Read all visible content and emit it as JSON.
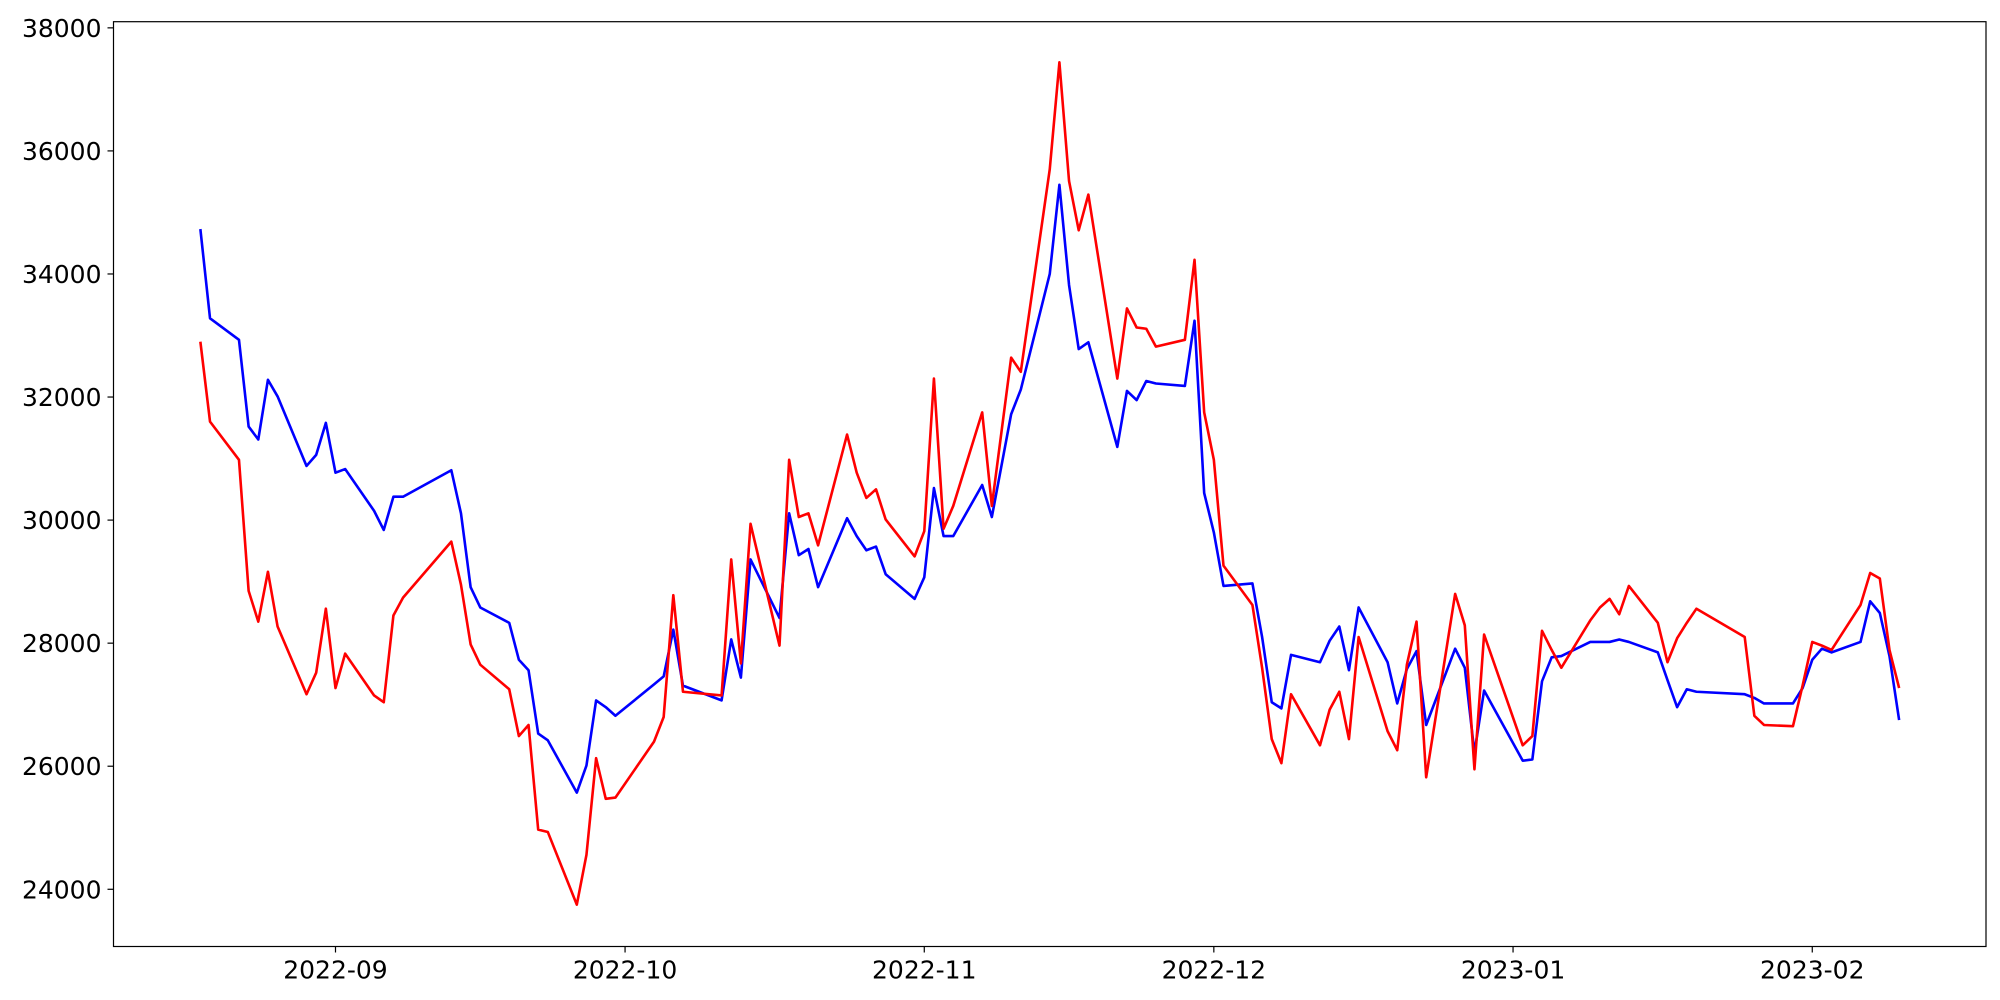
{
  "chart_data": {
    "type": "line",
    "x": [
      "2022-08-18",
      "2022-08-19",
      "2022-08-22",
      "2022-08-23",
      "2022-08-24",
      "2022-08-25",
      "2022-08-26",
      "2022-08-29",
      "2022-08-30",
      "2022-08-31",
      "2022-09-01",
      "2022-09-02",
      "2022-09-05",
      "2022-09-06",
      "2022-09-07",
      "2022-09-08",
      "2022-09-13",
      "2022-09-14",
      "2022-09-15",
      "2022-09-16",
      "2022-09-19",
      "2022-09-20",
      "2022-09-21",
      "2022-09-22",
      "2022-09-23",
      "2022-09-26",
      "2022-09-27",
      "2022-09-28",
      "2022-09-29",
      "2022-09-30",
      "2022-10-04",
      "2022-10-05",
      "2022-10-06",
      "2022-10-07",
      "2022-10-11",
      "2022-10-12",
      "2022-10-13",
      "2022-10-14",
      "2022-10-17",
      "2022-10-18",
      "2022-10-19",
      "2022-10-20",
      "2022-10-21",
      "2022-10-24",
      "2022-10-25",
      "2022-10-26",
      "2022-10-27",
      "2022-10-28",
      "2022-10-31",
      "2022-11-01",
      "2022-11-02",
      "2022-11-03",
      "2022-11-04",
      "2022-11-07",
      "2022-11-08",
      "2022-11-10",
      "2022-11-11",
      "2022-11-14",
      "2022-11-15",
      "2022-11-16",
      "2022-11-17",
      "2022-11-18",
      "2022-11-21",
      "2022-11-22",
      "2022-11-23",
      "2022-11-24",
      "2022-11-25",
      "2022-11-28",
      "2022-11-29",
      "2022-11-30",
      "2022-12-01",
      "2022-12-02",
      "2022-12-05",
      "2022-12-06",
      "2022-12-07",
      "2022-12-08",
      "2022-12-09",
      "2022-12-12",
      "2022-12-13",
      "2022-12-14",
      "2022-12-15",
      "2022-12-16",
      "2022-12-19",
      "2022-12-20",
      "2022-12-21",
      "2022-12-22",
      "2022-12-23",
      "2022-12-26",
      "2022-12-27",
      "2022-12-28",
      "2022-12-29",
      "2023-01-02",
      "2023-01-03",
      "2023-01-04",
      "2023-01-05",
      "2023-01-06",
      "2023-01-09",
      "2023-01-10",
      "2023-01-11",
      "2023-01-12",
      "2023-01-13",
      "2023-01-16",
      "2023-01-17",
      "2023-01-18",
      "2023-01-19",
      "2023-01-20",
      "2023-01-25",
      "2023-01-26",
      "2023-01-27",
      "2023-01-30",
      "2023-01-31",
      "2023-02-01",
      "2023-02-02",
      "2023-02-03",
      "2023-02-06",
      "2023-02-07",
      "2023-02-08",
      "2023-02-09",
      "2023-02-10"
    ],
    "series": [
      {
        "color": "#0000ff",
        "values": [
          34730,
          33280,
          32930,
          31520,
          31310,
          32280,
          32010,
          30880,
          31060,
          31580,
          30770,
          30830,
          30150,
          29840,
          30380,
          30380,
          30810,
          30110,
          28910,
          28580,
          28330,
          27730,
          27560,
          26530,
          26420,
          25570,
          26010,
          27070,
          26960,
          26820,
          27330,
          27460,
          28220,
          27310,
          27070,
          28060,
          27440,
          29360,
          28410,
          30110,
          29430,
          29530,
          28910,
          30030,
          29740,
          29510,
          29570,
          29120,
          28720,
          29070,
          30520,
          29740,
          29740,
          30570,
          30050,
          31720,
          32120,
          34000,
          35450,
          33820,
          32780,
          32890,
          31190,
          32100,
          31950,
          32260,
          32220,
          32180,
          33240,
          30440,
          29800,
          28930,
          28970,
          28100,
          27040,
          26940,
          27810,
          27690,
          28040,
          28270,
          27560,
          28580,
          27690,
          27020,
          27580,
          27870,
          26670,
          27910,
          27600,
          26220,
          27230,
          26090,
          26110,
          27380,
          27770,
          27790,
          28020,
          28020,
          28020,
          28060,
          28020,
          27850,
          27400,
          26960,
          27250,
          27210,
          27170,
          27110,
          27020,
          27020,
          27270,
          27730,
          27910,
          27850,
          28020,
          28680,
          28490,
          27790,
          26750
        ]
      },
      {
        "color": "#ff0000",
        "values": [
          32900,
          31600,
          30980,
          28850,
          28350,
          29160,
          28270,
          27170,
          27520,
          28560,
          27270,
          27830,
          27150,
          27040,
          28450,
          28740,
          29650,
          28950,
          27980,
          27650,
          27250,
          26490,
          26670,
          24970,
          24930,
          23750,
          24560,
          26130,
          25470,
          25490,
          26400,
          26800,
          28780,
          27210,
          27150,
          29360,
          27670,
          29940,
          27960,
          30980,
          30050,
          30110,
          29590,
          31390,
          30770,
          30360,
          30500,
          30010,
          29410,
          29820,
          32300,
          29860,
          30230,
          31750,
          30230,
          32640,
          32410,
          35700,
          37440,
          35510,
          34710,
          35290,
          32300,
          33440,
          33130,
          33110,
          32820,
          32930,
          34230,
          31750,
          30980,
          29260,
          28620,
          27600,
          26440,
          26050,
          27170,
          26340,
          26920,
          27210,
          26440,
          28100,
          26570,
          26260,
          27650,
          28350,
          25820,
          28800,
          28290,
          25950,
          28140,
          26340,
          26490,
          28200,
          27890,
          27600,
          28370,
          28580,
          28720,
          28470,
          28930,
          28330,
          27690,
          28080,
          28330,
          28560,
          28100,
          26820,
          26670,
          26650,
          27310,
          28020,
          27960,
          27890,
          28620,
          29140,
          29050,
          27890,
          27270
        ]
      }
    ],
    "xlim": [
      "2022-08-09",
      "2023-02-19"
    ],
    "xticks": [
      "2022-09",
      "2022-10",
      "2022-11",
      "2022-12",
      "2023-01",
      "2023-02"
    ],
    "ylim": [
      23070,
      38100
    ],
    "yticks": [
      24000,
      26000,
      28000,
      30000,
      32000,
      34000,
      36000,
      38000
    ]
  }
}
